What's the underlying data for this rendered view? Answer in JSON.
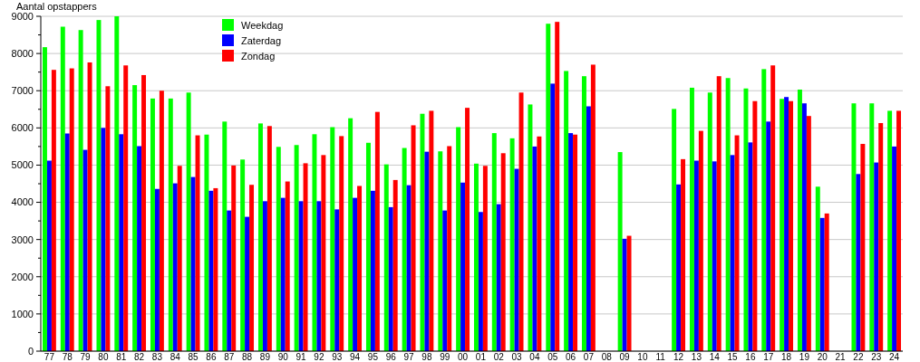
{
  "chart_data": {
    "type": "bar",
    "ylabel": "Aantal opstappers",
    "categories": [
      "77",
      "78",
      "79",
      "80",
      "81",
      "82",
      "83",
      "84",
      "85",
      "86",
      "87",
      "88",
      "89",
      "90",
      "91",
      "92",
      "93",
      "94",
      "95",
      "96",
      "97",
      "98",
      "99",
      "00",
      "01",
      "02",
      "03",
      "04",
      "05",
      "06",
      "07",
      "08",
      "09",
      "10",
      "11",
      "12",
      "13",
      "14",
      "15",
      "16",
      "17",
      "18",
      "19",
      "20",
      "21",
      "22",
      "23",
      "24"
    ],
    "series": [
      {
        "name": "Weekdag",
        "color": "#00ff00",
        "values": [
          8170,
          8720,
          8630,
          8900,
          9000,
          7150,
          6790,
          6790,
          6950,
          5820,
          6170,
          5150,
          6120,
          5490,
          5540,
          5830,
          6020,
          6260,
          5600,
          5020,
          5460,
          6380,
          5370,
          6020,
          5040,
          5860,
          5720,
          6630,
          8800,
          7530,
          7390,
          null,
          5350,
          null,
          null,
          6510,
          7080,
          6950,
          7340,
          7060,
          7580,
          6780,
          7030,
          4420,
          null,
          6660,
          6660,
          6460
        ]
      },
      {
        "name": "Zaterdag",
        "color": "#0000ff",
        "values": [
          5120,
          5850,
          5410,
          6000,
          5830,
          5510,
          4360,
          4510,
          4680,
          4310,
          3780,
          3610,
          4030,
          4120,
          4030,
          4030,
          3810,
          4120,
          4310,
          3870,
          4460,
          5360,
          3780,
          4530,
          3740,
          3950,
          4900,
          5500,
          7190,
          5860,
          6580,
          null,
          3020,
          null,
          null,
          4480,
          5120,
          5100,
          5270,
          5610,
          6170,
          6830,
          6660,
          3580,
          null,
          4760,
          5070,
          5500
        ]
      },
      {
        "name": "Zondag",
        "color": "#ff0000",
        "values": [
          7560,
          7600,
          7760,
          7120,
          7680,
          7420,
          7000,
          4980,
          5800,
          4380,
          4990,
          4470,
          6050,
          4560,
          5050,
          5270,
          5780,
          4440,
          6430,
          4600,
          6070,
          6460,
          5510,
          6540,
          4980,
          5320,
          6950,
          5770,
          8850,
          5820,
          7700,
          null,
          3100,
          null,
          null,
          5160,
          5920,
          7390,
          5800,
          6720,
          7680,
          6720,
          6320,
          3700,
          null,
          5570,
          6130,
          6460
        ]
      }
    ],
    "ylim": [
      0,
      9000
    ],
    "yticks": [
      0,
      {
        "value": 500,
        "label": null
      },
      1000,
      {
        "value": 1500,
        "label": null
      },
      2000,
      {
        "value": 2500,
        "label": null
      },
      3000,
      {
        "value": 3500,
        "label": null
      },
      4000,
      {
        "value": 4500,
        "label": null
      },
      5000,
      {
        "value": 5500,
        "label": null
      },
      6000,
      {
        "value": 6500,
        "label": null
      },
      7000,
      {
        "value": 7500,
        "label": null
      },
      8000,
      {
        "value": 8500,
        "label": null
      },
      9000
    ],
    "grid": "y",
    "legend": "top left"
  }
}
